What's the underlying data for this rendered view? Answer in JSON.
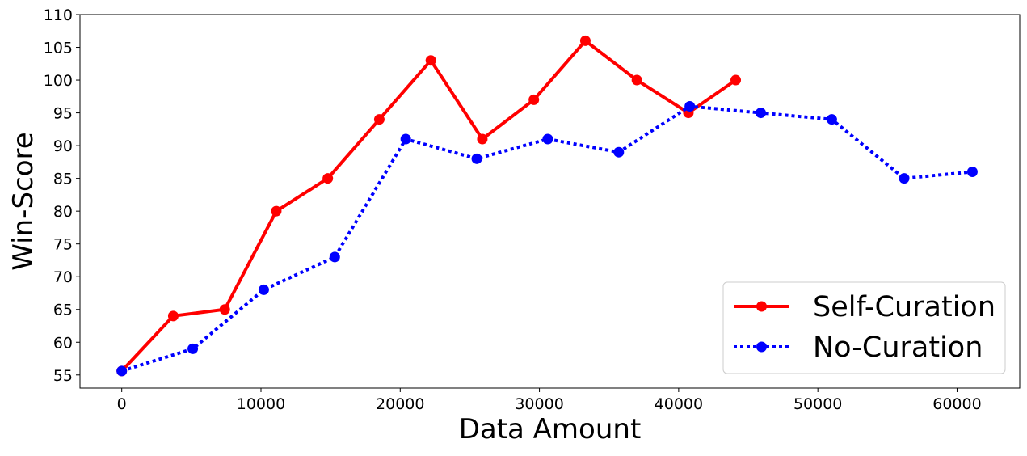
{
  "chart_data": {
    "type": "line",
    "xlabel": "Data Amount",
    "ylabel": "Win-Score",
    "xlim": [
      -3000,
      64500
    ],
    "ylim": [
      53,
      110
    ],
    "xticks": [
      0,
      10000,
      20000,
      30000,
      40000,
      50000,
      60000
    ],
    "yticks": [
      55,
      60,
      65,
      70,
      75,
      80,
      85,
      90,
      95,
      100,
      105,
      110
    ],
    "grid": false,
    "legend_position": "lower-right",
    "series": [
      {
        "name": "Self-Curation",
        "color": "#ff0000",
        "line_style": "solid",
        "x": [
          0,
          3700,
          7400,
          11100,
          14800,
          18500,
          22200,
          25900,
          29600,
          33300,
          37000,
          40700,
          44100
        ],
        "y": [
          55.6,
          64,
          65,
          80,
          85,
          94,
          103,
          91,
          97,
          106,
          100,
          95,
          100
        ]
      },
      {
        "name": "No-Curation",
        "color": "#0000ff",
        "line_style": "dotted",
        "x": [
          0,
          5100,
          10200,
          15300,
          20400,
          25500,
          30600,
          35700,
          40800,
          45900,
          51000,
          56200,
          61100
        ],
        "y": [
          55.6,
          59,
          68,
          73,
          91,
          88,
          91,
          89,
          96,
          95,
          94,
          85,
          86
        ]
      }
    ]
  }
}
